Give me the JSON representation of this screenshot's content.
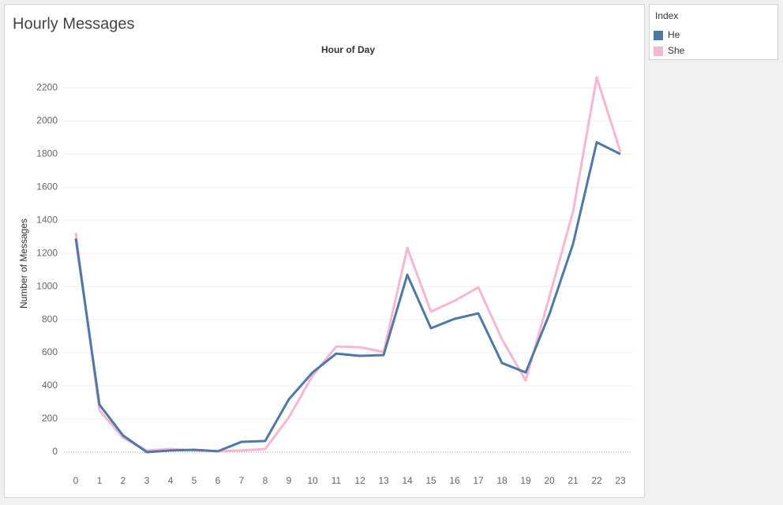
{
  "chart_data": {
    "type": "line",
    "title": "Hourly Messages",
    "header": "Hour of Day",
    "y_label": "Number of Messages",
    "x": [
      0,
      1,
      2,
      3,
      4,
      5,
      6,
      7,
      8,
      9,
      10,
      11,
      12,
      13,
      14,
      15,
      16,
      17,
      18,
      19,
      20,
      21,
      22,
      23
    ],
    "xlim": [
      -0.5,
      23.5
    ],
    "xticks": [
      0,
      1,
      2,
      3,
      4,
      5,
      6,
      7,
      8,
      9,
      10,
      11,
      12,
      13,
      14,
      15,
      16,
      17,
      18,
      19,
      20,
      21,
      22,
      23
    ],
    "ylim": [
      -105,
      2330
    ],
    "yticks": [
      0,
      200,
      400,
      600,
      800,
      1000,
      1200,
      1400,
      1600,
      1800,
      2000,
      2200
    ],
    "grid": true,
    "legend_title": "Index",
    "series": [
      {
        "name": "He",
        "color": "#4e79a7",
        "values": [
          1290,
          286,
          100,
          0,
          10,
          14,
          5,
          62,
          67,
          319,
          481,
          595,
          581,
          586,
          1071,
          748,
          805,
          838,
          538,
          481,
          833,
          1257,
          1871,
          1800
        ]
      },
      {
        "name": "She",
        "color": "#f7b6d2",
        "values": [
          1324,
          252,
          86,
          10,
          19,
          10,
          5,
          10,
          19,
          210,
          462,
          638,
          633,
          605,
          1233,
          848,
          914,
          995,
          681,
          433,
          938,
          1452,
          2262,
          1814
        ]
      }
    ]
  }
}
